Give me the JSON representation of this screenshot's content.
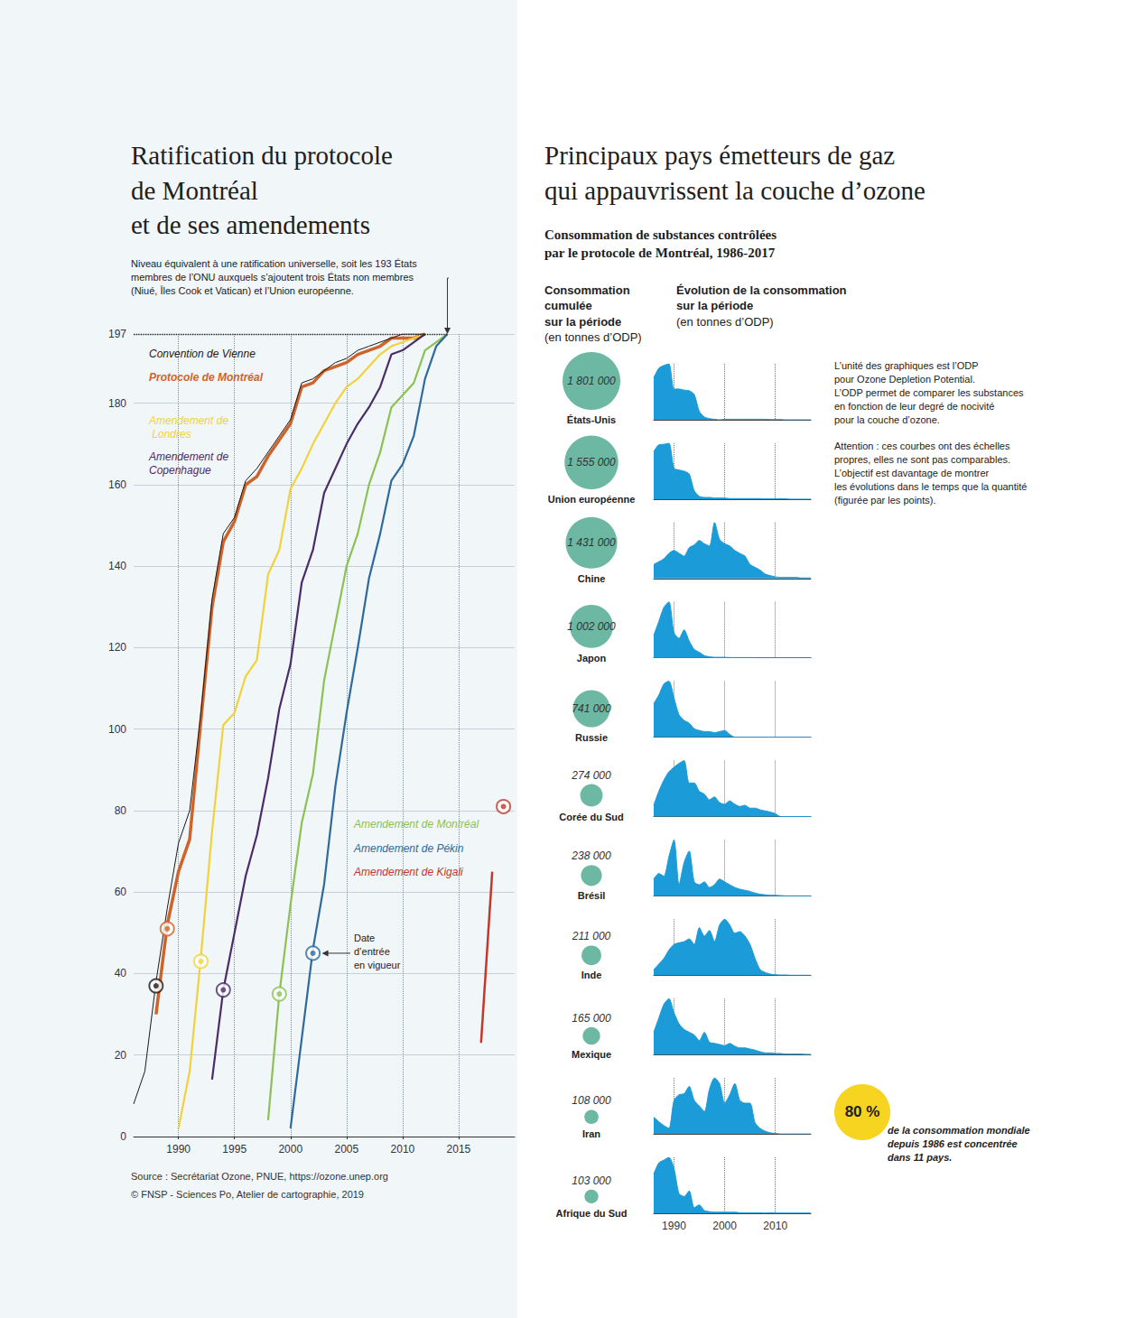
{
  "chart_data": [
    {
      "type": "line",
      "title": [
        "Ratification du protocole",
        "de Montréal",
        "et de ses amendements"
      ],
      "annotations": [
        {
          "text": [
            "Niveau équivalent à une ratification universelle, soit les 193 États",
            "membres de l’ONU auxquels s’ajoutent trois États non membres",
            "(Niué, Îles Cook et Vatican) et l’Union européenne."
          ],
          "y": 197
        },
        {
          "text": [
            "Date",
            "d’entrée",
            "en vigueur"
          ]
        }
      ],
      "xlim": [
        1986,
        2020
      ],
      "xticks": [
        1990,
        1995,
        2000,
        2005,
        2010,
        2015
      ],
      "ylim": [
        0,
        197
      ],
      "yticks": [
        0,
        20,
        40,
        60,
        80,
        100,
        120,
        140,
        160,
        180,
        197
      ],
      "grid": true,
      "series": [
        {
          "name": "Convention de Vienne",
          "color": "#1a1a1a",
          "x": [
            1986,
            1987,
            1988,
            1989,
            1990,
            1991,
            1992,
            1993,
            1994,
            1995,
            1996,
            1997,
            1998,
            1999,
            2000,
            2001,
            2002,
            2003,
            2004,
            2005,
            2006,
            2007,
            2008,
            2009,
            2010,
            2011,
            2012
          ],
          "values": [
            8,
            16,
            38,
            56,
            72,
            80,
            104,
            132,
            148,
            152,
            161,
            164,
            168,
            172,
            176,
            185,
            186,
            188,
            190,
            191,
            193,
            194,
            195,
            196,
            197,
            197,
            197
          ],
          "entry_into_force": [
            1988,
            37
          ]
        },
        {
          "name": "Protocole de Montréal",
          "color": "#cf642b",
          "x": [
            1988,
            1989,
            1990,
            1991,
            1992,
            1993,
            1994,
            1995,
            1996,
            1997,
            1998,
            1999,
            2000,
            2001,
            2002,
            2003,
            2004,
            2005,
            2006,
            2007,
            2008,
            2009,
            2010,
            2011,
            2012
          ],
          "values": [
            30,
            52,
            65,
            73,
            102,
            130,
            146,
            151,
            160,
            162,
            167,
            171,
            175,
            184,
            185,
            188,
            189,
            190,
            192,
            193,
            194,
            196,
            196,
            196,
            197
          ],
          "entry_into_force": [
            1989,
            51
          ]
        },
        {
          "name": "Amendement de Londres",
          "color": "#f2d23c",
          "x": [
            1990,
            1991,
            1992,
            1993,
            1994,
            1995,
            1996,
            1997,
            1998,
            1999,
            2000,
            2001,
            2002,
            2003,
            2004,
            2005,
            2006,
            2007,
            2008,
            2009,
            2010,
            2011,
            2012
          ],
          "values": [
            2,
            16,
            44,
            75,
            101,
            104,
            113,
            117,
            138,
            144,
            159,
            164,
            170,
            175,
            180,
            184,
            186,
            189,
            192,
            194,
            195,
            196,
            197
          ],
          "entry_into_force": [
            1992,
            43
          ]
        },
        {
          "name": "Amendement de Copenhague",
          "color": "#4a2c6a",
          "x": [
            1993,
            1994,
            1995,
            1996,
            1997,
            1998,
            1999,
            2000,
            2001,
            2002,
            2003,
            2004,
            2005,
            2006,
            2007,
            2008,
            2009,
            2010,
            2011,
            2012
          ],
          "values": [
            14,
            36,
            50,
            64,
            74,
            88,
            105,
            116,
            136,
            144,
            158,
            164,
            170,
            175,
            179,
            184,
            192,
            193,
            195,
            197
          ],
          "entry_into_force": [
            1994,
            36
          ]
        },
        {
          "name": "Amendement de Montréal",
          "color": "#8dc153",
          "x": [
            1998,
            1999,
            2000,
            2001,
            2002,
            2003,
            2004,
            2005,
            2006,
            2007,
            2008,
            2009,
            2010,
            2011,
            2012,
            2013,
            2014
          ],
          "values": [
            4,
            35,
            57,
            77,
            89,
            112,
            126,
            140,
            148,
            160,
            168,
            179,
            182,
            185,
            193,
            195,
            197
          ],
          "entry_into_force": [
            1999,
            35
          ]
        },
        {
          "name": "Amendement de Pékin",
          "color": "#2e6a9b",
          "x": [
            2000,
            2001,
            2002,
            2003,
            2004,
            2005,
            2006,
            2007,
            2008,
            2009,
            2010,
            2011,
            2012,
            2013,
            2014
          ],
          "values": [
            2,
            24,
            46,
            62,
            86,
            104,
            120,
            137,
            148,
            161,
            165,
            172,
            186,
            194,
            197
          ],
          "entry_into_force": [
            2002,
            45
          ]
        },
        {
          "name": "Amendement de Kigali",
          "color": "#c0392b",
          "x": [
            2017,
            2018
          ],
          "values": [
            23,
            65
          ],
          "entry_into_force": [
            2019,
            81
          ]
        }
      ],
      "source": [
        "Source : Secrétariat Ozone, PNUE, https://ozone.unep.org",
        "© FNSP - Sciences Po, Atelier de cartographie, 2019"
      ]
    },
    {
      "type": "area",
      "title": [
        "Principaux pays émetteurs de gaz",
        "qui appauvrissent la couche d’ozone"
      ],
      "subtitle": [
        "Consommation de substances contrôlées",
        "par le protocole de Montréal, 1986-2017"
      ],
      "columns": [
        {
          "title": [
            "Consommation",
            "cumulée",
            "sur la période"
          ],
          "unit": "(en tonnes d’ODP)"
        },
        {
          "title": [
            "Évolution de la consommation",
            "sur la période"
          ],
          "unit": "(en tonnes d’ODP)"
        }
      ],
      "notes": [
        [
          "L’unité des graphiques est l’ODP",
          "pour Ozone Depletion Potential.",
          "L’ODP permet de comparer les substances",
          "en fonction de leur degré de nocivité",
          "pour la couche d’ozone."
        ],
        [
          "Attention : ces courbes ont des échelles",
          "propres, elles ne sont pas comparables.",
          "L’objectif est davantage de montrer",
          "les évolutions dans le temps que la quantité",
          "(figurée par les points)."
        ]
      ],
      "callout": {
        "value": 80,
        "label": "80 %",
        "text": [
          "de la consommation mondiale",
          "depuis 1986 est concentrée",
          "dans 11 pays."
        ]
      },
      "x": [
        1986,
        1987,
        1988,
        1989,
        1990,
        1991,
        1992,
        1993,
        1994,
        1995,
        1996,
        1997,
        1998,
        1999,
        2000,
        2001,
        2002,
        2003,
        2004,
        2005,
        2006,
        2007,
        2008,
        2009,
        2010,
        2011,
        2012,
        2013,
        2014,
        2015,
        2016,
        2017
      ],
      "xlim": [
        1986,
        2017
      ],
      "xticks": [
        1990,
        2000,
        2010
      ],
      "ylim": [
        0,
        100
      ],
      "tick_labels": "x",
      "color": "#1b9bd7",
      "total_color": "#6cb8a2",
      "panels": [
        {
          "name": "États-Unis",
          "total": 1801000,
          "total_label": "1 801 000",
          "values": [
            75,
            92,
            97,
            100,
            55,
            55,
            53,
            52,
            45,
            15,
            5,
            2,
            1,
            0,
            1,
            1,
            1,
            1,
            1,
            1,
            1,
            1,
            1,
            0.5,
            0.5,
            0.5,
            0,
            0,
            0,
            0,
            0,
            0
          ]
        },
        {
          "name": "Union européenne",
          "total": 1555000,
          "total_label": "1 555 000",
          "values": [
            85,
            97,
            98,
            100,
            55,
            52,
            50,
            45,
            15,
            5,
            3,
            3,
            2,
            2,
            2,
            1,
            1,
            1,
            1,
            1,
            1,
            1,
            0.5,
            0.5,
            0.5,
            1,
            0.5,
            0,
            0,
            0,
            0,
            0
          ]
        },
        {
          "name": "Chine",
          "total": 1431000,
          "total_label": "1 431 000",
          "values": [
            25,
            30,
            35,
            45,
            50,
            45,
            40,
            55,
            60,
            68,
            62,
            58,
            100,
            70,
            62,
            58,
            50,
            45,
            40,
            25,
            20,
            15,
            8,
            5,
            3,
            2,
            2,
            2,
            2,
            1,
            1,
            1
          ]
        },
        {
          "name": "Japon",
          "total": 1002000,
          "total_label": "1 002 000",
          "values": [
            40,
            65,
            90,
            100,
            45,
            35,
            50,
            30,
            15,
            10,
            4,
            2,
            1,
            1,
            1,
            0.5,
            0.5,
            0.5,
            0.5,
            0.5,
            0,
            0,
            0,
            0,
            0,
            0,
            0,
            0,
            0,
            0,
            0,
            0
          ]
        },
        {
          "name": "Russie",
          "total": 741000,
          "total_label": "741 000",
          "values": [
            60,
            75,
            95,
            100,
            70,
            40,
            30,
            25,
            15,
            12,
            10,
            10,
            8,
            10,
            12,
            5,
            0,
            0,
            0,
            0,
            0,
            0,
            0,
            0,
            0,
            0,
            0,
            0,
            0,
            0,
            0,
            0
          ]
        },
        {
          "name": "Corée du Sud",
          "total": 274000,
          "total_label": "274 000",
          "values": [
            20,
            45,
            65,
            80,
            88,
            95,
            100,
            60,
            60,
            45,
            40,
            30,
            35,
            25,
            22,
            28,
            22,
            18,
            20,
            15,
            15,
            12,
            10,
            8,
            5,
            0,
            0,
            0,
            0,
            0,
            0,
            0
          ]
        },
        {
          "name": "Brésil",
          "total": 238000,
          "total_label": "238 000",
          "values": [
            30,
            40,
            35,
            70,
            100,
            20,
            60,
            80,
            25,
            20,
            25,
            15,
            20,
            30,
            25,
            20,
            15,
            12,
            10,
            8,
            5,
            3,
            2,
            1,
            1,
            0.5,
            0,
            0,
            0,
            0,
            0,
            0
          ]
        },
        {
          "name": "Inde",
          "total": 211000,
          "total_label": "211 000",
          "values": [
            10,
            20,
            30,
            45,
            55,
            58,
            60,
            65,
            55,
            85,
            70,
            80,
            60,
            90,
            100,
            90,
            75,
            78,
            70,
            55,
            30,
            10,
            5,
            2,
            1,
            0.5,
            0.5,
            0,
            0,
            0,
            0,
            0
          ]
        },
        {
          "name": "Mexique",
          "total": 165000,
          "total_label": "165 000",
          "values": [
            40,
            65,
            90,
            100,
            75,
            55,
            45,
            40,
            35,
            25,
            40,
            22,
            20,
            18,
            16,
            20,
            15,
            12,
            12,
            10,
            8,
            5,
            3,
            3,
            2,
            2,
            1,
            1,
            1,
            1,
            0.5,
            0.5
          ]
        },
        {
          "name": "Iran",
          "total": 108000,
          "total_label": "108 000",
          "values": [
            30,
            22,
            15,
            10,
            60,
            70,
            72,
            85,
            60,
            50,
            40,
            80,
            100,
            90,
            55,
            70,
            90,
            60,
            55,
            55,
            20,
            10,
            5,
            2,
            1,
            0,
            0,
            0,
            0,
            0,
            0,
            0
          ]
        },
        {
          "name": "Afrique du Sud",
          "total": 103000,
          "total_label": "103 000",
          "values": [
            70,
            90,
            95,
            100,
            80,
            35,
            30,
            40,
            10,
            15,
            5,
            3,
            2,
            2,
            2,
            2,
            2,
            1,
            1,
            1,
            1,
            1,
            0.5,
            1,
            0.5,
            0.5,
            0.5,
            0.5,
            0.5,
            0.5,
            0.5,
            0.5
          ]
        }
      ]
    }
  ]
}
